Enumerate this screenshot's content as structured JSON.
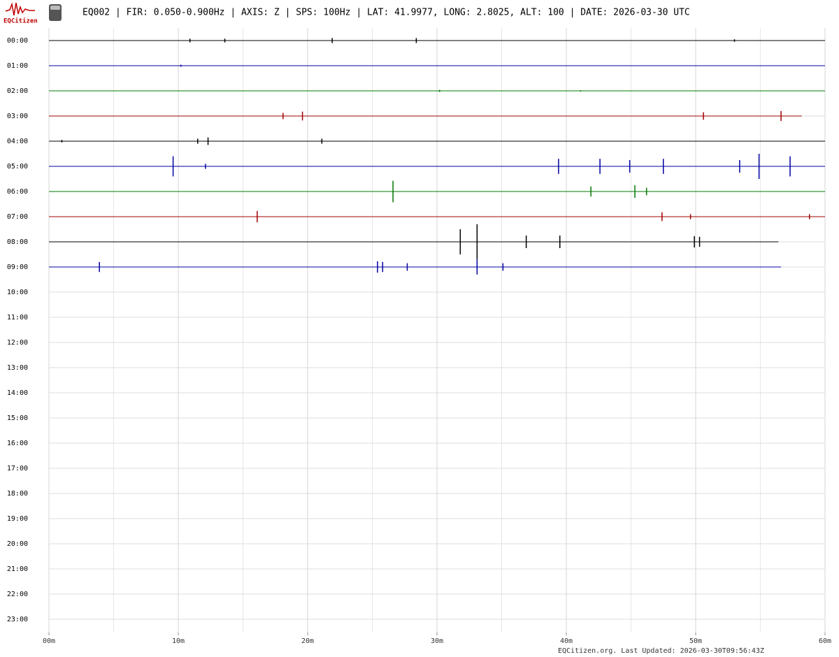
{
  "chart_data": {
    "type": "helicorder",
    "logo_text": "EQCitizen",
    "title": "EQ002 | FIR: 0.050-0.900Hz | AXIS: Z | SPS: 100Hz | LAT: 41.9977, LONG: 2.8025, ALT: 100 | DATE: 2026-03-30 UTC",
    "footer": "EQCitizen.org. Last Updated: 2026-03-30T09:56:43Z",
    "categories": [
      "00:00",
      "01:00",
      "02:00",
      "03:00",
      "04:00",
      "05:00",
      "06:00",
      "07:00",
      "08:00",
      "09:00",
      "10:00",
      "11:00",
      "12:00",
      "13:00",
      "14:00",
      "15:00",
      "16:00",
      "17:00",
      "18:00",
      "19:00",
      "20:00",
      "21:00",
      "22:00",
      "23:00"
    ],
    "xlim": [
      0,
      60
    ],
    "xticks": [
      {
        "value": 0,
        "label": "00m"
      },
      {
        "value": 10,
        "label": "10m"
      },
      {
        "value": 20,
        "label": "20m"
      },
      {
        "value": 30,
        "label": "30m"
      },
      {
        "value": 40,
        "label": "40m"
      },
      {
        "value": 50,
        "label": "50m"
      },
      {
        "value": 60,
        "label": "60m"
      }
    ],
    "minor_xticks": [
      5,
      15,
      25,
      35,
      45,
      55
    ],
    "grid": true,
    "series": [
      {
        "row": 0,
        "color": "#000000",
        "end": 60,
        "x": [
          10.9,
          13.6,
          21.9,
          28.4,
          53
        ],
        "values": [
          0.15,
          0.15,
          0.2,
          0.2,
          0.1
        ]
      },
      {
        "row": 1,
        "color": "#0000a0",
        "end": 60,
        "x": [
          10.2
        ],
        "values": [
          0.08
        ]
      },
      {
        "row": 2,
        "color": "#007a00",
        "end": 60,
        "x": [
          30.2,
          41.1
        ],
        "values": [
          0.08,
          0.05
        ]
      },
      {
        "row": 3,
        "color": "#a00000",
        "end": 58.2,
        "x": [
          18.1,
          19.6,
          50.6,
          56.6
        ],
        "values": [
          0.25,
          0.35,
          0.3,
          0.4
        ]
      },
      {
        "row": 4,
        "color": "#000000",
        "end": 60,
        "x": [
          1,
          11.5,
          12.3,
          21.1
        ],
        "values": [
          0.1,
          0.2,
          0.3,
          0.2
        ]
      },
      {
        "row": 5,
        "color": "#0000a0",
        "end": 60,
        "x": [
          9.6,
          12.1,
          39.4,
          42.6,
          44.9,
          47.5,
          53.4,
          54.9,
          57.3
        ],
        "values": [
          0.8,
          0.2,
          0.6,
          0.6,
          0.5,
          0.6,
          0.5,
          1.0,
          0.8
        ]
      },
      {
        "row": 6,
        "color": "#007a00",
        "end": 60,
        "x": [
          26.6,
          41.9,
          45.3,
          46.2
        ],
        "values": [
          0.85,
          0.4,
          0.5,
          0.3
        ]
      },
      {
        "row": 7,
        "color": "#a00000",
        "end": 60,
        "x": [
          16.1,
          47.4,
          49.6,
          58.8
        ],
        "values": [
          0.45,
          0.35,
          0.2,
          0.2
        ]
      },
      {
        "row": 8,
        "color": "#000000",
        "end": 56.4,
        "x": [
          31.8,
          33.1,
          36.9,
          39.5,
          49.9,
          50.3
        ],
        "values": [
          1.0,
          1.4,
          0.5,
          0.5,
          0.45,
          0.4
        ]
      },
      {
        "row": 9,
        "color": "#0000a0",
        "end": 56.6,
        "x": [
          3.9,
          25.4,
          25.8,
          27.7,
          33.1,
          35.1
        ],
        "values": [
          0.4,
          0.45,
          0.4,
          0.3,
          0.6,
          0.3
        ]
      }
    ]
  }
}
